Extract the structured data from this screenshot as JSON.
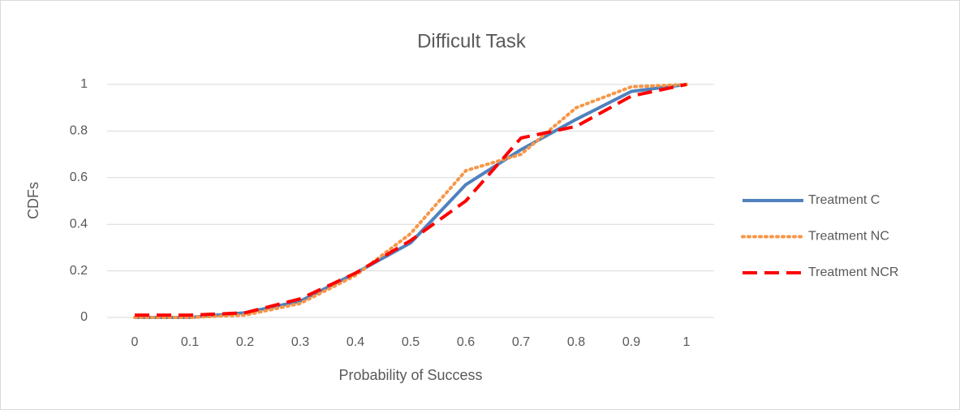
{
  "chart_data": {
    "type": "line",
    "title": "Difficult Task",
    "x_label": "Probability of Success",
    "y_label": "CDFs",
    "categories": [
      "0",
      "0.1",
      "0.2",
      "0.3",
      "0.4",
      "0.5",
      "0.6",
      "0.7",
      "0.8",
      "0.9",
      "1"
    ],
    "series": [
      {
        "name": "Treatment C",
        "color": "#4f81bd",
        "style": "solid",
        "values": [
          0,
          0,
          0.02,
          0.07,
          0.19,
          0.32,
          0.57,
          0.72,
          0.85,
          0.97,
          1
        ]
      },
      {
        "name": "Treatment NC",
        "color": "#f79646",
        "style": "dotted",
        "values": [
          0,
          0,
          0.01,
          0.06,
          0.18,
          0.36,
          0.63,
          0.7,
          0.9,
          0.99,
          1
        ]
      },
      {
        "name": "Treatment NCR",
        "color": "#ff0000",
        "style": "dashed",
        "values": [
          0.01,
          0.01,
          0.02,
          0.08,
          0.19,
          0.33,
          0.5,
          0.77,
          0.82,
          0.95,
          1
        ]
      }
    ],
    "ylim": [
      0,
      1
    ],
    "yticks": [
      0,
      0.2,
      0.4,
      0.6,
      0.8,
      1
    ],
    "grid": true,
    "legend": "right"
  }
}
